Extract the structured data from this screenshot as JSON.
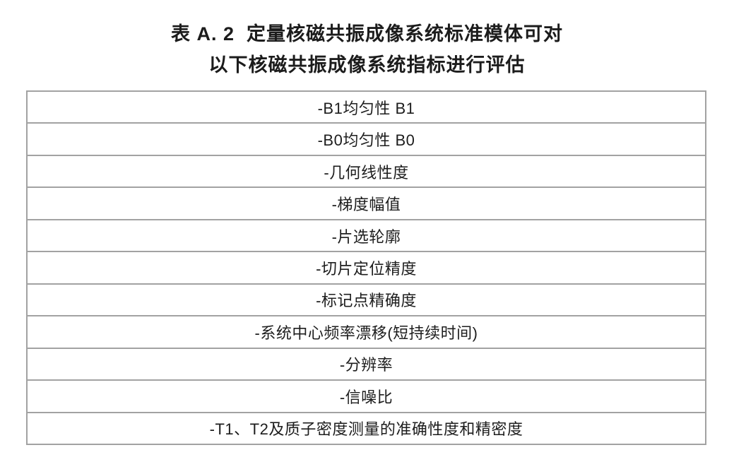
{
  "title": {
    "line1": "表 A. 2  定量核磁共振成像系统标准模体可对",
    "line2": "以下核磁共振成像系统指标进行评估"
  },
  "table": {
    "border_color": "#a2a2a2",
    "text_color": "#1d1d1d",
    "rows": [
      "-B1均匀性 B1",
      "-B0均匀性 B0",
      "-几何线性度",
      "-梯度幅值",
      "-片选轮廓",
      "-切片定位精度",
      "-标记点精确度",
      "-系统中心频率漂移(短持续时间)",
      "-分辨率",
      "-信噪比",
      "-T1、T2及质子密度测量的准确性度和精密度"
    ]
  }
}
